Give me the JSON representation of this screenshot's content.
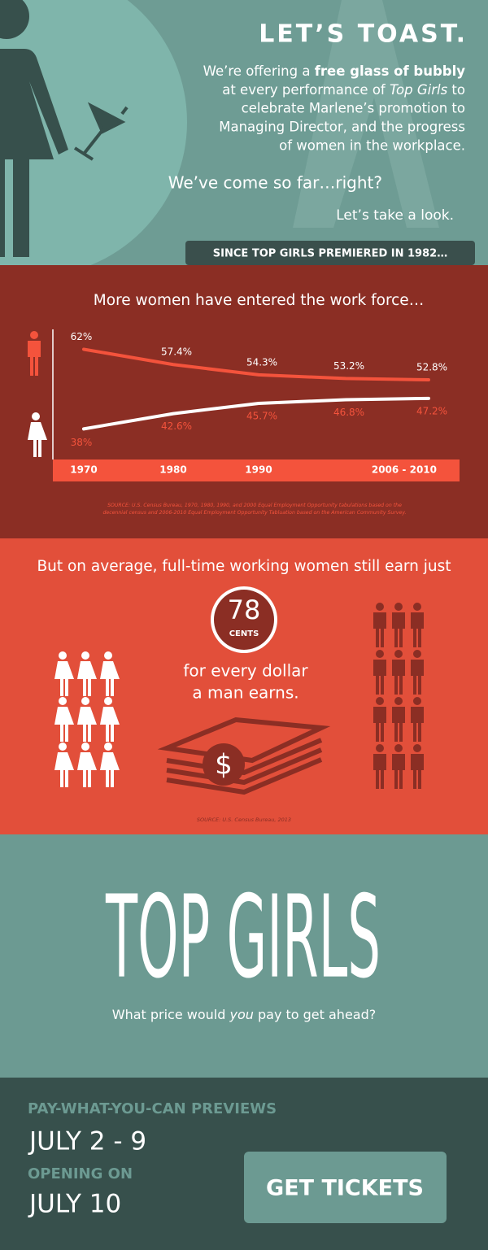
{
  "header": {
    "title": "LET’S TOAST.",
    "intro_lines": [
      [
        "We’re offering a ",
        "free glass of bubbly"
      ],
      [
        "at every performance of ",
        "Top Girls",
        " to"
      ],
      [
        "celebrate Marlene’s promotion to"
      ],
      [
        "Managing Director, and the progress"
      ],
      [
        "of women in the workplace."
      ]
    ],
    "question": "We’ve come so far…right?",
    "look": "Let’s take a look.",
    "banner": "SINCE TOP GIRLS PREMIERED IN 1982…"
  },
  "chart_data": {
    "type": "line",
    "title": "More women have entered the work force…",
    "categories": [
      "1970",
      "1980",
      "1990",
      null,
      "2006 - 2010"
    ],
    "series": [
      {
        "name": "men",
        "color": "#f4533c",
        "values": [
          62,
          57.4,
          54.3,
          53.2,
          52.8
        ],
        "value_labels": [
          "62%",
          "57.4%",
          "54.3%",
          "53.2%",
          "52.8%"
        ]
      },
      {
        "name": "women",
        "color": "#ffffff",
        "values": [
          38,
          42.6,
          45.7,
          46.8,
          47.2
        ],
        "value_labels": [
          "38%",
          "42.6%",
          "45.7%",
          "46.8%",
          "47.2%"
        ]
      }
    ],
    "ylim": [
      30,
      68
    ],
    "source": [
      "SOURCE: U.S. Census Bureau, 1970, 1980, 1990, and 2000 Equal Employment Opportunity tabulations based on the",
      "decennial census and 2006-2010 Equal Employment Opportunity Tabluation based on the American Community Survey."
    ]
  },
  "pay_gap": {
    "heading": "But on average, full-time working women still earn just",
    "amount": "78",
    "unit": "CENTS",
    "text_lines": [
      "for every dollar",
      "a man earns."
    ],
    "dollar_symbol": "$",
    "source": "SOURCE: U.S. Census Bureau, 2013"
  },
  "show": {
    "title": "TOP GIRLS",
    "tagline": [
      "What price would ",
      "you",
      " pay to get ahead?"
    ]
  },
  "footer": {
    "previews_label": "PAY-WHAT-YOU-CAN PREVIEWS",
    "previews_dates": "JULY 2 - 9",
    "opening_label": "OPENING ON",
    "opening_date": "JULY 10",
    "button": "GET TICKETS"
  }
}
